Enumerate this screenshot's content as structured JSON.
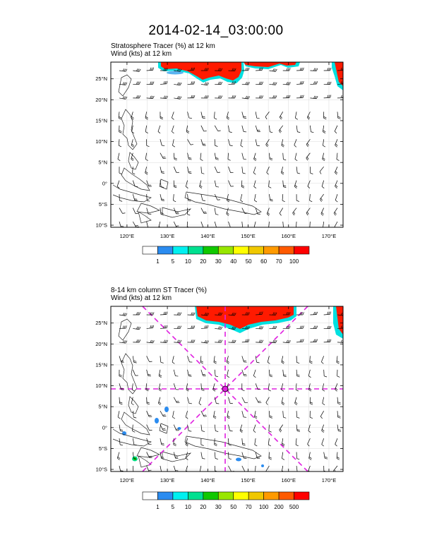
{
  "title": "2014-02-14_03:00:00",
  "panels": [
    {
      "id": "upper",
      "subtitle_line1": "Stratosphere Tracer   (%)     at   12 km",
      "subtitle_line2": "Wind    (kts)     at   12 km",
      "lat_labels": [
        "25°N",
        "20°N",
        "15°N",
        "10°N",
        "5°N",
        "0°",
        "5°S",
        "10°S"
      ],
      "lon_labels": [
        "120°E",
        "130°E",
        "140°E",
        "150°E",
        "160°E",
        "170°E"
      ],
      "colorbar_labels": [
        "1",
        "5",
        "10",
        "20",
        "30",
        "40",
        "50",
        "60",
        "70",
        "100"
      ],
      "colorbar_colors": [
        "#ffffff",
        "#2b8cf0",
        "#00f0f0",
        "#00e090",
        "#10c800",
        "#98e600",
        "#ffff00",
        "#f0c800",
        "#ff9a00",
        "#ff5a00",
        "#ff0000"
      ]
    },
    {
      "id": "lower",
      "subtitle_line1": "8-14 km column ST Tracer   (%)",
      "subtitle_line2": "Wind    (kts)     at   12 km",
      "lat_labels": [
        "25°N",
        "20°N",
        "15°N",
        "10°N",
        "5°N",
        "0°",
        "5°S",
        "10°S"
      ],
      "lon_labels": [
        "120°E",
        "130°E",
        "140°E",
        "150°E",
        "160°E",
        "170°E"
      ],
      "colorbar_labels": [
        "1",
        "5",
        "10",
        "20",
        "30",
        "50",
        "70",
        "100",
        "200",
        "500"
      ],
      "colorbar_colors": [
        "#ffffff",
        "#2b8cf0",
        "#00f0f0",
        "#00e090",
        "#10c800",
        "#98e600",
        "#ffff00",
        "#f0c800",
        "#ff9a00",
        "#ff5a00",
        "#ff0000"
      ],
      "marker_lat": 10,
      "marker_lon": 145.3
    }
  ],
  "map_extent": {
    "lon_min": 116,
    "lon_max": 173.5,
    "lat_min": -10.5,
    "lat_max": 29
  },
  "colors": {
    "tracer_high": "#ff1a00",
    "tracer_edge": "#00e0e0",
    "crosshair": "#e020e0"
  }
}
